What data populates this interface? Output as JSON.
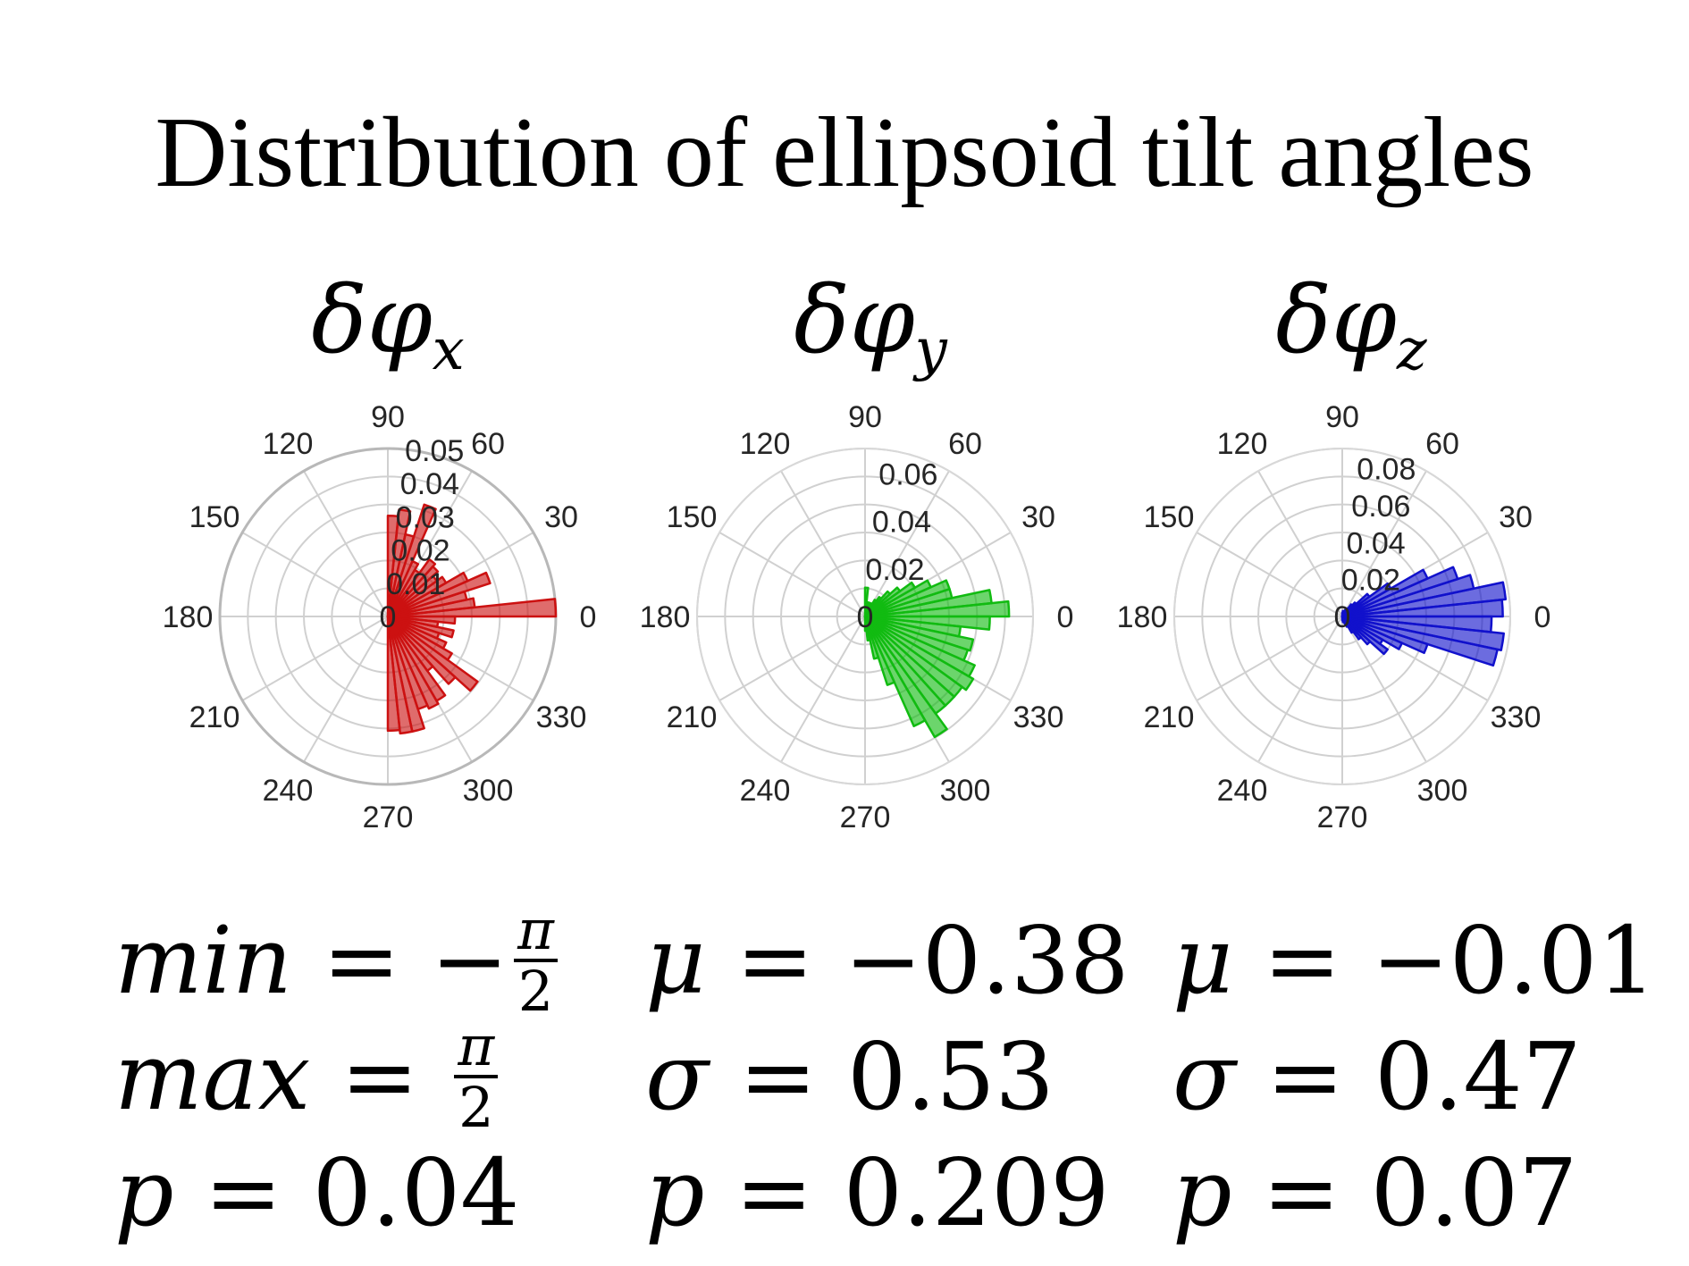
{
  "title": "Distribution of ellipsoid tilt angles",
  "angle_labels": [
    "0",
    "30",
    "60",
    "90",
    "120",
    "150",
    "180",
    "210",
    "240",
    "270",
    "300",
    "330"
  ],
  "chart_data": [
    {
      "type": "polar-bar",
      "title_symbol": "δφ",
      "title_subscript": "x",
      "color": "#cc1111",
      "spine": true,
      "rmax": 0.05,
      "r_ticks": [
        0,
        0.01,
        0.02,
        0.03,
        0.04,
        0.05
      ],
      "r_tick_labels": [
        "0",
        "0.01",
        "0.02",
        "0.03",
        "0.04",
        "0.05"
      ],
      "theta_deg": [
        -87,
        -81,
        -75,
        -69,
        -63,
        -57,
        -51,
        -45,
        -39,
        -33,
        -27,
        -21,
        -15,
        -9,
        -3,
        3,
        9,
        15,
        21,
        27,
        33,
        39,
        45,
        51,
        57,
        63,
        69,
        75,
        81,
        87
      ],
      "values": [
        0.034,
        0.035,
        0.035,
        0.029,
        0.03,
        0.029,
        0.02,
        0.027,
        0.033,
        0.022,
        0.019,
        0.016,
        0.02,
        0.015,
        0.02,
        0.05,
        0.026,
        0.024,
        0.032,
        0.026,
        0.02,
        0.018,
        0.02,
        0.021,
        0.016,
        0.018,
        0.035,
        0.025,
        0.032,
        0.03
      ]
    },
    {
      "type": "polar-bar",
      "title_symbol": "δφ",
      "title_subscript": "y",
      "color": "#11bb11",
      "spine": false,
      "rmax": 0.07,
      "r_ticks": [
        0,
        0.02,
        0.04,
        0.06
      ],
      "r_tick_labels": [
        "0",
        "0.02",
        "0.04",
        "0.06"
      ],
      "theta_deg": [
        -87,
        -81,
        -75,
        -69,
        -63,
        -57,
        -51,
        -45,
        -39,
        -33,
        -27,
        -21,
        -15,
        -9,
        -3,
        3,
        9,
        15,
        21,
        27,
        33,
        39,
        45,
        51,
        57,
        63,
        69,
        75,
        81,
        87
      ],
      "values": [
        0.006,
        0.01,
        0.018,
        0.03,
        0.05,
        0.058,
        0.05,
        0.05,
        0.05,
        0.052,
        0.05,
        0.045,
        0.046,
        0.04,
        0.052,
        0.06,
        0.053,
        0.037,
        0.037,
        0.03,
        0.024,
        0.018,
        0.014,
        0.01,
        0.008,
        0.006,
        0.005,
        0.006,
        0.005,
        0.012
      ]
    },
    {
      "type": "polar-bar",
      "title_symbol": "δφ",
      "title_subscript": "z",
      "color": "#1111cc",
      "spine": false,
      "rmax": 0.09,
      "r_ticks": [
        0,
        0.02,
        0.04,
        0.06,
        0.08
      ],
      "r_tick_labels": [
        "0",
        "0.02",
        "0.04",
        "0.06",
        "0.08"
      ],
      "theta_deg": [
        -87,
        -81,
        -75,
        -69,
        -63,
        -57,
        -51,
        -45,
        -39,
        -33,
        -27,
        -21,
        -15,
        -9,
        -3,
        3,
        9,
        15,
        21,
        27,
        33,
        39,
        45,
        51,
        57,
        63,
        69,
        75,
        81,
        87
      ],
      "values": [
        0.002,
        0.003,
        0.003,
        0.004,
        0.006,
        0.01,
        0.015,
        0.02,
        0.03,
        0.025,
        0.035,
        0.048,
        0.085,
        0.087,
        0.08,
        0.086,
        0.088,
        0.072,
        0.065,
        0.05,
        0.03,
        0.018,
        0.01,
        0.008,
        0.005,
        0.004,
        0.003,
        0.003,
        0.003,
        0.002
      ]
    }
  ],
  "stats": [
    {
      "min_var": "min",
      "min_eq": "=",
      "min_sign": "−",
      "min_num": "π",
      "min_den": "2",
      "max_var": "max",
      "max_eq": "=",
      "max_num": "π",
      "max_den": "2",
      "p_var": "p",
      "p_eq": "=",
      "p_val": "0.04"
    },
    {
      "mu_var": "μ",
      "mu_eq": "=",
      "mu_val": "−0.38",
      "sigma_var": "σ",
      "sigma_eq": "=",
      "sigma_val": "0.53",
      "p_var": "p",
      "p_eq": "=",
      "p_val": "0.209"
    },
    {
      "mu_var": "μ",
      "mu_eq": "=",
      "mu_val": "−0.01",
      "sigma_var": "σ",
      "sigma_eq": "=",
      "sigma_val": "0.47",
      "p_var": "p",
      "p_eq": "=",
      "p_val": "0.07"
    }
  ]
}
